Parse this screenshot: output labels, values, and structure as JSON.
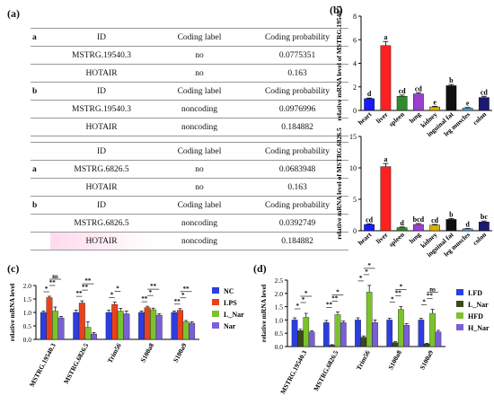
{
  "panel_labels": {
    "a": "(a)",
    "b": "(b)",
    "c": "(c)",
    "d": "(d)"
  },
  "tables": [
    {
      "rows": [
        {
          "group": "a",
          "id": "ID",
          "label": "Coding label",
          "prob": "Coding probability"
        },
        {
          "group": "",
          "id": "MSTRG.19540.3",
          "label": "no",
          "prob": "0.0775351"
        },
        {
          "group": "",
          "id": "HOTAIR",
          "label": "no",
          "prob": "0.163"
        },
        {
          "group": "b",
          "id": "ID",
          "label": "Coding label",
          "prob": "Coding probability"
        },
        {
          "group": "",
          "id": "MSTRG.19540.3",
          "label": "noncoding",
          "prob": "0.0976996"
        },
        {
          "group": "",
          "id": "HOTAIR",
          "label": "noncoding",
          "prob": "0.184882"
        }
      ]
    },
    {
      "rows": [
        {
          "group": "",
          "id": "ID",
          "label": "Coding label",
          "prob": "Coding probability"
        },
        {
          "group": "a",
          "id": "MSTRG.6826.5",
          "label": "no",
          "prob": "0.0683948"
        },
        {
          "group": "",
          "id": "HOTAIR",
          "label": "no",
          "prob": "0.163"
        },
        {
          "group": "b",
          "id": "ID",
          "label": "Coding label",
          "prob": "Coding probability"
        },
        {
          "group": "",
          "id": "MSTRG.6826.5",
          "label": "noncoding",
          "prob": "0.0392749"
        },
        {
          "group": "",
          "id": "HOTAIR",
          "label": "noncoding",
          "prob": "0.184882"
        }
      ]
    }
  ],
  "chart_data": [
    {
      "type": "bar",
      "ylabel": "relative mRNA level of MSTRG.19540.3",
      "categories": [
        "heart",
        "liver",
        "spleen",
        "lung",
        "kidney",
        "inguinal fat",
        "leg muscles",
        "colon"
      ],
      "values": [
        1.0,
        5.5,
        1.2,
        1.4,
        0.3,
        2.1,
        0.2,
        1.1
      ],
      "errors": [
        0.05,
        0.35,
        0.1,
        0.1,
        0.05,
        0.1,
        0.05,
        0.1
      ],
      "letters": [
        "d",
        "a",
        "cd",
        "cd",
        "e",
        "b",
        "e",
        "cd"
      ],
      "colors": [
        "#1a1aff",
        "#ff2020",
        "#2e8b2e",
        "#9a3fd0",
        "#d9b000",
        "#111111",
        "#4aa0e0",
        "#1a1a70"
      ],
      "ylim": [
        0,
        8
      ],
      "yticks": [
        "0",
        "2",
        "4",
        "6",
        "8"
      ]
    },
    {
      "type": "bar",
      "ylabel": "relative mRNA level of MSTRG.6826.5",
      "categories": [
        "heart",
        "liver",
        "spleen",
        "lung",
        "kidney",
        "inguinal fat",
        "leg muscles",
        "colon"
      ],
      "values": [
        1.0,
        10.2,
        0.5,
        1.0,
        0.9,
        1.8,
        0.3,
        1.4
      ],
      "errors": [
        0.1,
        0.5,
        0.1,
        0.15,
        0.1,
        0.15,
        0.05,
        0.15
      ],
      "letters": [
        "cd",
        "a",
        "d",
        "bcd",
        "cd",
        "b",
        "d",
        "bc"
      ],
      "colors": [
        "#1a1aff",
        "#ff2020",
        "#2e8b2e",
        "#9a3fd0",
        "#d9b000",
        "#111111",
        "#4aa0e0",
        "#1a1a70"
      ],
      "ylim": [
        0,
        15
      ],
      "yticks": [
        "0",
        "5",
        "10",
        "15"
      ]
    },
    {
      "type": "bar",
      "ylabel": "relative mRNA level",
      "categories": [
        "MSTRG.19540.3",
        "MSTRG.6826.5",
        "Trim56",
        "S100a8",
        "S100a9"
      ],
      "series": [
        {
          "name": "NC",
          "color": "#2c3ee0",
          "values": [
            1.0,
            1.0,
            1.0,
            1.0,
            1.0
          ],
          "errors": [
            0.05,
            0.08,
            0.08,
            0.05,
            0.05
          ]
        },
        {
          "name": "LPS",
          "color": "#e8421c",
          "values": [
            1.55,
            1.35,
            1.3,
            1.18,
            1.08
          ],
          "errors": [
            0.05,
            0.08,
            0.08,
            0.05,
            0.06
          ]
        },
        {
          "name": "L_Nar",
          "color": "#7cc22d",
          "values": [
            1.05,
            0.45,
            1.05,
            1.1,
            0.65
          ],
          "errors": [
            0.15,
            0.2,
            0.1,
            0.06,
            0.05
          ]
        },
        {
          "name": "Nar",
          "color": "#7a5fd6",
          "values": [
            0.8,
            0.2,
            0.95,
            0.9,
            0.6
          ],
          "errors": [
            0.05,
            0.05,
            0.1,
            0.05,
            0.05
          ]
        }
      ],
      "sig": [
        [
          "*",
          "**",
          "ns"
        ],
        [
          "**",
          "**",
          "**"
        ],
        [
          "*",
          "*"
        ],
        [
          "**",
          "*",
          "**"
        ],
        [
          "**",
          "*",
          "**"
        ]
      ],
      "ylim": [
        0,
        2.0
      ],
      "yticks": [
        "0.0",
        "0.5",
        "1.0",
        "1.5",
        "2.0"
      ],
      "legend": "right"
    },
    {
      "type": "bar",
      "ylabel": "relative mRNA level",
      "categories": [
        "MSTRG.19540.3",
        "MSTRG.6826.5",
        "Trim56",
        "S100a8",
        "S100a9"
      ],
      "series": [
        {
          "name": "LFD",
          "color": "#2c3ee0",
          "values": [
            1.0,
            0.9,
            1.0,
            1.0,
            1.0
          ],
          "errors": [
            0.08,
            0.08,
            0.08,
            0.06,
            0.06
          ]
        },
        {
          "name": "L_Nar",
          "color": "#3a4a1a",
          "values": [
            0.6,
            0.05,
            0.35,
            0.15,
            0.1
          ],
          "errors": [
            0.05,
            0.02,
            0.05,
            0.03,
            0.02
          ]
        },
        {
          "name": "HFD",
          "color": "#7cc22d",
          "values": [
            1.1,
            1.2,
            2.05,
            1.4,
            1.25
          ],
          "errors": [
            0.15,
            0.1,
            0.25,
            0.1,
            0.15
          ]
        },
        {
          "name": "H_Nar",
          "color": "#7a5fd6",
          "values": [
            0.55,
            0.9,
            0.9,
            0.8,
            0.55
          ],
          "errors": [
            0.05,
            0.06,
            0.1,
            0.06,
            0.06
          ]
        }
      ],
      "sig": [
        [
          "*",
          "*",
          "*"
        ],
        [
          "**",
          "**",
          "*"
        ],
        [
          "*",
          "*",
          "*"
        ],
        [
          "*",
          "**",
          "*"
        ],
        [
          "*",
          "**",
          "ns"
        ]
      ],
      "ylim": [
        0,
        2.5
      ],
      "yticks": [
        "0.0",
        "0.5",
        "1.0",
        "1.5",
        "2.0",
        "2.5"
      ],
      "legend": "right"
    }
  ]
}
